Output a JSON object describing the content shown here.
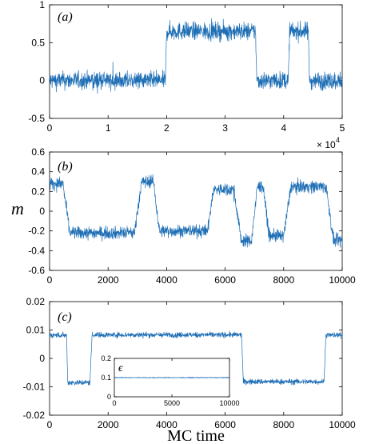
{
  "colors": {
    "series": "#1f6fb5",
    "axis": "#000000"
  },
  "ylabel": "m",
  "xlabel": "MC time",
  "chart_data": [
    {
      "type": "line",
      "panel_label": "(a)",
      "xlim": [
        0,
        50000
      ],
      "ylim": [
        -0.5,
        1
      ],
      "xticks": [
        0,
        10000,
        20000,
        30000,
        40000,
        50000
      ],
      "xtick_labels": [
        "0",
        "1",
        "2",
        "3",
        "4",
        "5"
      ],
      "xscale_label": "× 10",
      "xscale_exponent": "4",
      "yticks": [
        -0.5,
        0,
        0.5,
        1
      ],
      "ytick_labels": [
        "-0.5",
        "0",
        "0.5",
        "1"
      ],
      "series": [
        {
          "noise": 0.11,
          "segments": [
            [
              0,
              19800,
              0.0
            ],
            [
              20000,
              35200,
              0.65
            ],
            [
              35400,
              40800,
              0.0
            ],
            [
              41000,
              44200,
              0.65
            ],
            [
              44400,
              50000,
              0.0
            ]
          ]
        }
      ]
    },
    {
      "type": "line",
      "panel_label": "(b)",
      "xlim": [
        0,
        10000
      ],
      "ylim": [
        -0.6,
        0.6
      ],
      "xticks": [
        0,
        2000,
        4000,
        6000,
        8000,
        10000
      ],
      "xtick_labels": [
        "0",
        "2000",
        "4000",
        "6000",
        "8000",
        "10000"
      ],
      "yticks": [
        -0.6,
        -0.4,
        -0.2,
        0,
        0.2,
        0.4,
        0.6
      ],
      "ytick_labels": [
        "-0.6",
        "-0.4",
        "-0.2",
        "0",
        "0.2",
        "0.4",
        "0.6"
      ],
      "series": [
        {
          "noise": 0.06,
          "segments": [
            [
              0,
              450,
              0.28
            ],
            [
              700,
              2900,
              -0.22
            ],
            [
              3150,
              3550,
              0.3
            ],
            [
              3750,
              5400,
              -0.2
            ],
            [
              5600,
              6300,
              0.22
            ],
            [
              6550,
              6900,
              -0.3
            ],
            [
              7100,
              7300,
              0.25
            ],
            [
              7500,
              8000,
              -0.25
            ],
            [
              8250,
              9450,
              0.25
            ],
            [
              9700,
              10000,
              -0.3
            ]
          ]
        }
      ]
    },
    {
      "type": "line",
      "panel_label": "(c)",
      "xlim": [
        0,
        10000
      ],
      "ylim": [
        -0.02,
        0.02
      ],
      "xticks": [
        0,
        2000,
        4000,
        6000,
        8000,
        10000
      ],
      "xtick_labels": [
        "0",
        "2000",
        "4000",
        "6000",
        "8000",
        "10000"
      ],
      "yticks": [
        -0.02,
        -0.01,
        0,
        0.01,
        0.02
      ],
      "ytick_labels": [
        "-0.02",
        "-0.01",
        "0",
        "0.01",
        "0.02"
      ],
      "series": [
        {
          "noise": 0.0009,
          "segments": [
            [
              0,
              580,
              0.0082
            ],
            [
              620,
              1380,
              -0.0085
            ],
            [
              1450,
              6560,
              0.0083
            ],
            [
              6620,
              9380,
              -0.0082
            ],
            [
              9440,
              10000,
              0.0082
            ]
          ]
        }
      ],
      "inset": {
        "label": "ϵ",
        "xlim": [
          0,
          10000
        ],
        "ylim": [
          0,
          0.2
        ],
        "xticks": [
          0,
          5000,
          10000
        ],
        "xtick_labels": [
          "0",
          "5000",
          "10000"
        ],
        "yticks": [
          0,
          0.1,
          0.2
        ],
        "ytick_labels": [
          "0",
          "0.1",
          "0.2"
        ],
        "series": [
          {
            "noise": 0.002,
            "segments": [
              [
                0,
                10000,
                0.1
              ]
            ]
          }
        ]
      }
    }
  ]
}
